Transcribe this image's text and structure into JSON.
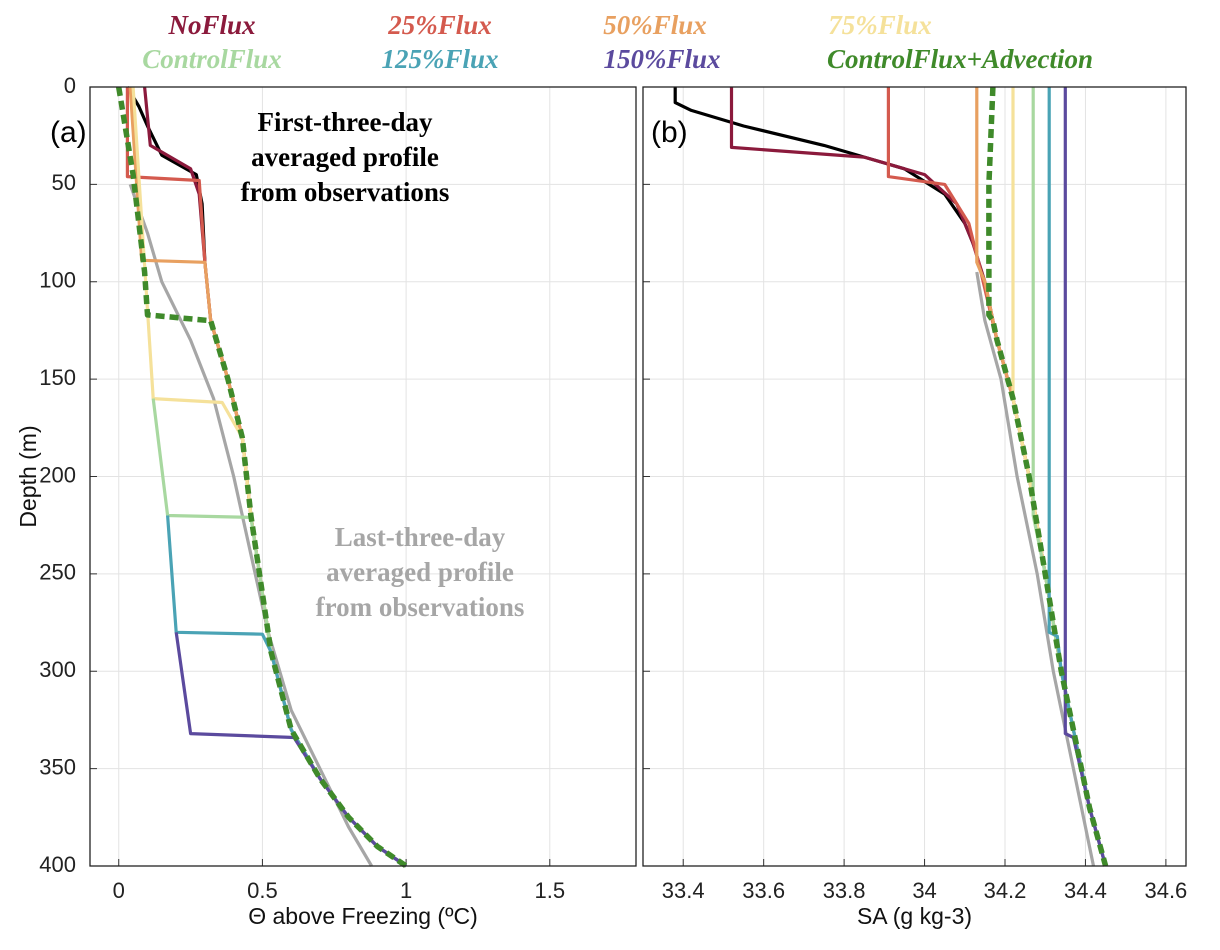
{
  "chart_data": [
    {
      "type": "line",
      "panel_label": "(a)",
      "xlabel": "Θ above Freezing (ºC)",
      "ylabel": "Depth (m)",
      "xlim": [
        -0.1,
        1.8
      ],
      "ylim": [
        0,
        400
      ],
      "y_reversed": true,
      "grid": true,
      "xticks": [
        0,
        0.5,
        1,
        1.5
      ],
      "yticks": [
        0,
        50,
        100,
        150,
        200,
        250,
        300,
        350,
        400
      ],
      "annotations": [
        {
          "lines": [
            "First-three-day",
            "averaged profile",
            "from observations"
          ],
          "color": "#000000"
        },
        {
          "lines": [
            "Last-three-day",
            "averaged profile",
            "from observations"
          ],
          "color": "#a6a6a6"
        }
      ],
      "series": [
        {
          "color": "#a6a6a6",
          "dashed": false,
          "x": [
            0.04,
            0.1,
            0.15,
            0.25,
            0.33,
            0.4,
            0.46,
            0.52,
            0.6,
            0.7,
            0.8,
            0.88
          ],
          "values": [
            50,
            75,
            100,
            130,
            160,
            200,
            240,
            280,
            320,
            350,
            380,
            400
          ]
        },
        {
          "color": "#000000",
          "dashed": false,
          "x": [
            0.03,
            0.07,
            0.1,
            0.15,
            0.27,
            0.29,
            0.3
          ],
          "values": [
            0,
            10,
            20,
            35,
            45,
            60,
            90
          ]
        },
        {
          "name": "NoFlux",
          "color": "#8b1a3c",
          "dashed": false,
          "x": [
            0.09,
            0.11,
            0.25,
            0.28,
            0.3,
            0.32,
            0.38,
            0.43,
            0.46,
            0.49,
            0.53,
            0.6,
            0.7,
            0.8,
            0.9,
            1.0
          ],
          "values": [
            0,
            30,
            42,
            55,
            90,
            120,
            150,
            180,
            220,
            250,
            290,
            330,
            355,
            375,
            390,
            400
          ]
        },
        {
          "name": "25%Flux",
          "color": "#d45a4e",
          "dashed": false,
          "x": [
            0.03,
            0.03,
            0.28,
            0.3,
            0.32,
            0.38,
            0.43,
            0.46,
            0.49,
            0.53,
            0.6,
            0.7,
            0.8,
            0.9,
            1.0
          ],
          "values": [
            0,
            46,
            48,
            90,
            120,
            150,
            180,
            220,
            250,
            290,
            330,
            355,
            375,
            390,
            400
          ]
        },
        {
          "name": "50%Flux",
          "color": "#e8a060",
          "dashed": false,
          "x": [
            0.04,
            0.08,
            0.3,
            0.32,
            0.38,
            0.43,
            0.46,
            0.49,
            0.53,
            0.6,
            0.7,
            0.8,
            0.9,
            1.0
          ],
          "values": [
            0,
            89,
            90,
            120,
            150,
            180,
            220,
            250,
            290,
            330,
            355,
            375,
            390,
            400
          ]
        },
        {
          "name": "75%Flux",
          "color": "#f5e19a",
          "dashed": false,
          "x": [
            0.05,
            0.12,
            0.36,
            0.43,
            0.46,
            0.49,
            0.53,
            0.6,
            0.7,
            0.8,
            0.9,
            1.0
          ],
          "values": [
            0,
            160,
            162,
            180,
            220,
            250,
            290,
            330,
            355,
            375,
            390,
            400
          ]
        },
        {
          "name": "ControlFlux",
          "color": "#a8d8a0",
          "dashed": false,
          "x": [
            0.12,
            0.17,
            0.46,
            0.49,
            0.53,
            0.6,
            0.7,
            0.8,
            0.9,
            1.0
          ],
          "values": [
            160,
            220,
            221,
            250,
            290,
            330,
            355,
            375,
            390,
            400
          ]
        },
        {
          "name": "125%Flux",
          "color": "#4aa3b5",
          "dashed": false,
          "x": [
            0.17,
            0.2,
            0.5,
            0.53,
            0.6,
            0.7,
            0.8,
            0.9,
            1.0
          ],
          "values": [
            220,
            280,
            281,
            290,
            330,
            355,
            375,
            390,
            400
          ]
        },
        {
          "name": "150%Flux",
          "color": "#5b4a9e",
          "dashed": false,
          "x": [
            0.2,
            0.25,
            0.61,
            0.7,
            0.8,
            0.9,
            1.0
          ],
          "values": [
            280,
            332,
            334,
            355,
            375,
            390,
            400
          ]
        },
        {
          "name": "ControlFlux+Advection",
          "color": "#3f8a2a",
          "dashed": true,
          "x": [
            0,
            0.05,
            0.09,
            0.1,
            0.32,
            0.38,
            0.43,
            0.46,
            0.49,
            0.53,
            0.6,
            0.7,
            0.8,
            0.9,
            1.0
          ],
          "values": [
            0,
            45,
            95,
            117,
            120,
            150,
            180,
            220,
            250,
            290,
            330,
            355,
            375,
            390,
            400
          ]
        }
      ]
    },
    {
      "type": "line",
      "panel_label": "(b)",
      "xlabel": "SA (g kg-3)",
      "xlim": [
        33.3,
        34.65
      ],
      "ylim": [
        0,
        400
      ],
      "y_reversed": true,
      "grid": true,
      "xticks": [
        33.4,
        33.6,
        33.8,
        34,
        34.2,
        34.4,
        34.6
      ],
      "yticks": [
        0,
        50,
        100,
        150,
        200,
        250,
        300,
        350,
        400
      ],
      "series": [
        {
          "color": "#a6a6a6",
          "dashed": false,
          "x": [
            34.13,
            34.15,
            34.19,
            34.23,
            34.28,
            34.32,
            34.37,
            34.42
          ],
          "values": [
            95,
            120,
            150,
            200,
            250,
            300,
            350,
            400
          ]
        },
        {
          "color": "#000000",
          "dashed": false,
          "x": [
            33.38,
            33.38,
            33.42,
            33.55,
            33.75,
            33.95,
            34.05,
            34.1,
            34.13
          ],
          "values": [
            0,
            8,
            12,
            20,
            30,
            42,
            55,
            70,
            85
          ]
        },
        {
          "color": "#8b1a3c",
          "dashed": false,
          "x": [
            33.52,
            33.52,
            33.85,
            34.0,
            34.08,
            34.12,
            34.15,
            34.18,
            34.22,
            34.26,
            34.3,
            34.34,
            34.38,
            34.41,
            34.45
          ],
          "values": [
            0,
            31,
            36,
            45,
            60,
            80,
            100,
            130,
            160,
            200,
            250,
            300,
            340,
            370,
            400
          ]
        },
        {
          "color": "#d45a4e",
          "dashed": false,
          "x": [
            33.91,
            33.91,
            34.05,
            34.11,
            34.14,
            34.18,
            34.22,
            34.26,
            34.3,
            34.34,
            34.38,
            34.41,
            34.45
          ],
          "values": [
            0,
            46,
            50,
            70,
            95,
            130,
            160,
            200,
            250,
            300,
            340,
            370,
            400
          ]
        },
        {
          "color": "#e8a060",
          "dashed": false,
          "x": [
            34.13,
            34.13,
            34.15,
            34.18,
            34.22,
            34.26,
            34.3,
            34.34,
            34.38,
            34.41,
            34.45
          ],
          "values": [
            0,
            90,
            100,
            130,
            160,
            200,
            250,
            300,
            340,
            370,
            400
          ]
        },
        {
          "color": "#f5e19a",
          "dashed": false,
          "x": [
            34.22,
            34.22,
            34.26,
            34.3,
            34.34,
            34.38,
            34.41,
            34.45
          ],
          "values": [
            0,
            160,
            200,
            250,
            300,
            340,
            370,
            400
          ]
        },
        {
          "color": "#a8d8a0",
          "dashed": false,
          "x": [
            34.27,
            34.27,
            34.3,
            34.34,
            34.38,
            34.41,
            34.45
          ],
          "values": [
            0,
            220,
            250,
            300,
            340,
            370,
            400
          ]
        },
        {
          "color": "#4aa3b5",
          "dashed": false,
          "x": [
            34.31,
            34.31,
            34.33,
            34.34,
            34.38,
            34.41,
            34.45
          ],
          "values": [
            0,
            280,
            282,
            300,
            340,
            370,
            400
          ]
        },
        {
          "color": "#5b4a9e",
          "dashed": false,
          "x": [
            34.35,
            34.35,
            34.37,
            34.41,
            34.45
          ],
          "values": [
            0,
            332,
            334,
            370,
            400
          ]
        },
        {
          "color": "#3f8a2a",
          "dashed": true,
          "x": [
            34.17,
            34.16,
            34.16,
            34.17,
            34.18,
            34.22,
            34.26,
            34.3,
            34.34,
            34.38,
            34.41,
            34.45
          ],
          "values": [
            0,
            50,
            117,
            120,
            130,
            160,
            200,
            250,
            300,
            340,
            370,
            400
          ]
        }
      ]
    }
  ]
}
